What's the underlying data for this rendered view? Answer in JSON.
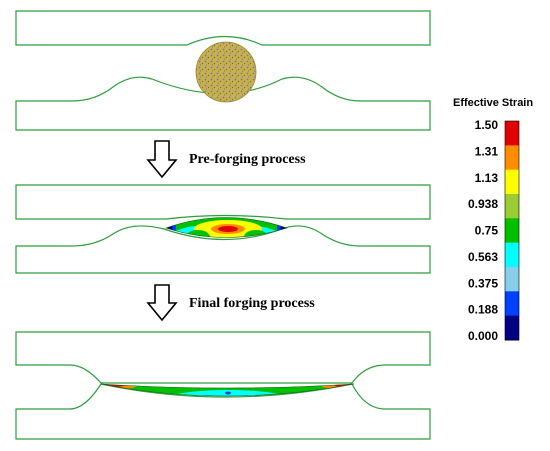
{
  "steps": [
    {
      "label": "Pre-forging process"
    },
    {
      "label": "Final forging process"
    }
  ],
  "legend": {
    "title": "Effective Strain",
    "ticks": [
      "1.50",
      "1.31",
      "1.13",
      "0.938",
      "0.75",
      "0.563",
      "0.375",
      "0.188",
      "0.000"
    ],
    "colors": [
      "#e00000",
      "#ff8c00",
      "#ffff00",
      "#9acd32",
      "#00c000",
      "#00ffff",
      "#87ceeb",
      "#0040ff",
      "#000080"
    ]
  },
  "colors": {
    "die_outline": "#2e9e3a",
    "billet_fill": "#c8b04a",
    "billet_speckle": "#6a78c8"
  },
  "icons": [
    "down-arrow-icon",
    "down-arrow-icon"
  ]
}
